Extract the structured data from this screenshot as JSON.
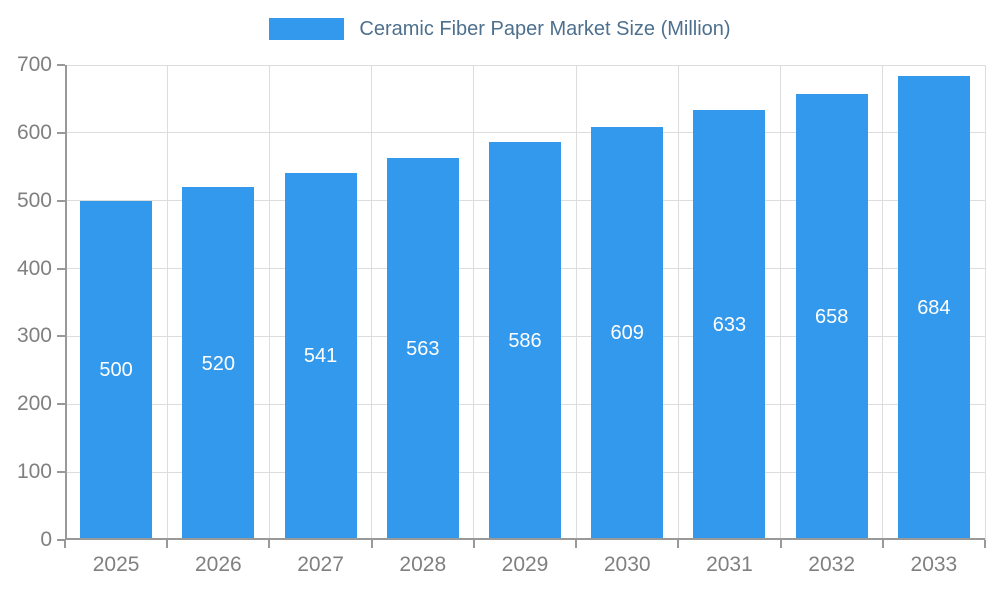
{
  "legend": {
    "label": "Ceramic Fiber Paper Market Size (Million)"
  },
  "chart_data": {
    "type": "bar",
    "title": "Ceramic Fiber Paper Market Size (Million)",
    "categories": [
      "2025",
      "2026",
      "2027",
      "2028",
      "2029",
      "2030",
      "2031",
      "2032",
      "2033"
    ],
    "values": [
      500,
      520,
      541,
      563,
      586,
      609,
      633,
      658,
      684
    ],
    "xlabel": "",
    "ylabel": "",
    "ylim": [
      0,
      700
    ],
    "yticks": [
      0,
      100,
      200,
      300,
      400,
      500,
      600,
      700
    ],
    "grid": true,
    "legend_position": "top",
    "value_label_position": "inside-center",
    "colors": {
      "bar": "#3399EC",
      "grid": "#DDDDDD",
      "axis": "#999999",
      "tick_label": "#808080",
      "legend_text": "#4D708E",
      "value_label": "#FFFFFF",
      "background": "#FFFFFF"
    }
  }
}
